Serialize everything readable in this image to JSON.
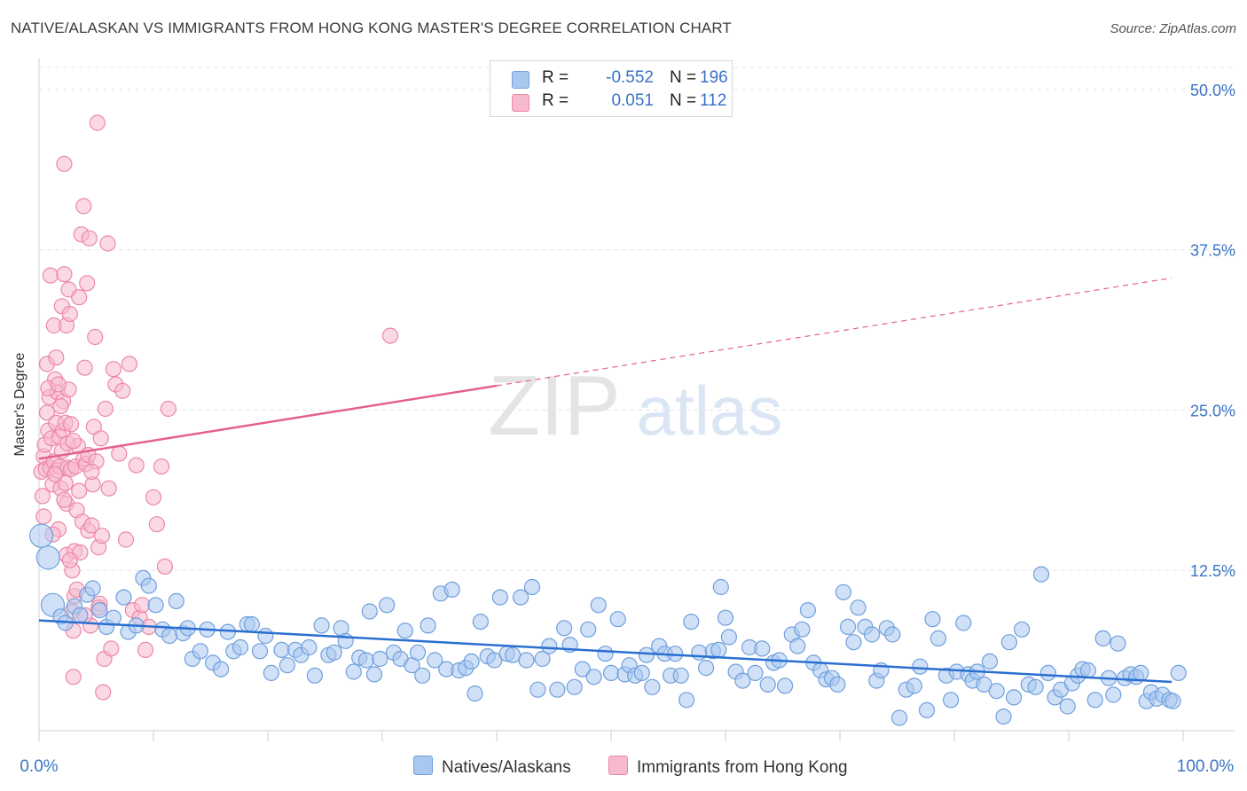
{
  "title": "NATIVE/ALASKAN VS IMMIGRANTS FROM HONG KONG MASTER'S DEGREE CORRELATION CHART",
  "source": "Source: ZipAtlas.com",
  "watermark": {
    "zip": "ZIP",
    "atlas": "atlas"
  },
  "colors": {
    "blue_fill": "#a9c8f0",
    "blue_stroke": "#6f9fdd",
    "blue_line": "#2a6fd1",
    "pink_fill": "#f7b9cd",
    "pink_stroke": "#ec87a8",
    "pink_line": "#e6608c",
    "axis_text": "#3a73c5",
    "grid": "#e4e4e4"
  },
  "legend": {
    "rows": [
      {
        "r_label": "R =",
        "r_value": "-0.552",
        "n_label": "N =",
        "n_value": "196",
        "color": "#a9c8f0",
        "border": "#6f9fdd"
      },
      {
        "r_label": "R =",
        "r_value": "0.051",
        "n_label": "N =",
        "n_value": "112",
        "color": "#f7b9cd",
        "border": "#ec87a8"
      }
    ]
  },
  "bottom_legend": [
    "Natives/Alaskans",
    "Immigrants from Hong Kong"
  ],
  "chart_data": {
    "type": "scatter",
    "title": "NATIVE/ALASKAN VS IMMIGRANTS FROM HONG KONG MASTER'S DEGREE CORRELATION CHART",
    "xlabel": "",
    "ylabel": "Master's Degree",
    "xlim": [
      0,
      100
    ],
    "ylim": [
      0,
      52
    ],
    "x_tick_labels": [
      "0.0%",
      "100.0%"
    ],
    "y_ticks": [
      12.5,
      25.0,
      37.5,
      50.0
    ],
    "y_tick_labels": [
      "12.5%",
      "25.0%",
      "37.5%",
      "50.0%"
    ],
    "grid": true,
    "legend_position": "top-center",
    "series": [
      {
        "name": "Natives/Alaskans",
        "R": -0.552,
        "N": 196,
        "trend": {
          "x0": 0,
          "y0": 8.6,
          "x1": 99,
          "y1": 3.8
        },
        "points": [
          [
            0.2,
            15.2
          ],
          [
            0.8,
            13.5
          ],
          [
            1.2,
            9.8
          ],
          [
            1.9,
            8.9
          ],
          [
            2.3,
            8.4
          ],
          [
            3.1,
            9.7
          ],
          [
            3.6,
            9.0
          ],
          [
            4.2,
            10.6
          ],
          [
            4.7,
            11.1
          ],
          [
            5.3,
            9.4
          ],
          [
            5.9,
            8.1
          ],
          [
            6.5,
            8.8
          ],
          [
            7.4,
            10.4
          ],
          [
            7.8,
            7.7
          ],
          [
            8.5,
            8.2
          ],
          [
            9.1,
            11.9
          ],
          [
            9.6,
            11.3
          ],
          [
            10.2,
            9.8
          ],
          [
            10.8,
            7.9
          ],
          [
            11.4,
            7.4
          ],
          [
            12.0,
            10.1
          ],
          [
            12.6,
            7.6
          ],
          [
            13.0,
            8.0
          ],
          [
            13.4,
            5.6
          ],
          [
            14.1,
            6.2
          ],
          [
            14.7,
            7.9
          ],
          [
            15.2,
            5.3
          ],
          [
            15.9,
            4.8
          ],
          [
            16.5,
            7.7
          ],
          [
            17.0,
            6.2
          ],
          [
            17.6,
            6.5
          ],
          [
            18.2,
            8.3
          ],
          [
            18.6,
            8.3
          ],
          [
            19.3,
            6.2
          ],
          [
            19.8,
            7.4
          ],
          [
            20.3,
            4.5
          ],
          [
            21.2,
            6.3
          ],
          [
            21.7,
            5.1
          ],
          [
            22.4,
            6.3
          ],
          [
            22.9,
            5.9
          ],
          [
            23.6,
            6.5
          ],
          [
            24.1,
            4.3
          ],
          [
            24.7,
            8.2
          ],
          [
            25.3,
            5.9
          ],
          [
            25.8,
            6.1
          ],
          [
            26.4,
            8.0
          ],
          [
            26.8,
            7.0
          ],
          [
            27.5,
            4.6
          ],
          [
            28.0,
            5.7
          ],
          [
            28.6,
            5.5
          ],
          [
            28.9,
            9.3
          ],
          [
            29.3,
            4.4
          ],
          [
            29.8,
            5.6
          ],
          [
            30.4,
            9.8
          ],
          [
            31.0,
            6.1
          ],
          [
            31.6,
            5.6
          ],
          [
            32.0,
            7.8
          ],
          [
            32.6,
            5.1
          ],
          [
            33.1,
            6.1
          ],
          [
            33.5,
            4.3
          ],
          [
            34.0,
            8.2
          ],
          [
            34.6,
            5.5
          ],
          [
            35.1,
            10.7
          ],
          [
            35.6,
            4.8
          ],
          [
            36.1,
            11.0
          ],
          [
            36.7,
            4.7
          ],
          [
            37.3,
            4.9
          ],
          [
            37.8,
            5.4
          ],
          [
            38.1,
            2.9
          ],
          [
            38.6,
            8.5
          ],
          [
            39.2,
            5.8
          ],
          [
            39.8,
            5.5
          ],
          [
            40.3,
            10.4
          ],
          [
            40.9,
            6.0
          ],
          [
            41.4,
            5.9
          ],
          [
            42.1,
            10.4
          ],
          [
            42.6,
            5.5
          ],
          [
            43.1,
            11.2
          ],
          [
            43.6,
            3.2
          ],
          [
            44.0,
            5.6
          ],
          [
            44.6,
            6.6
          ],
          [
            45.3,
            3.2
          ],
          [
            45.9,
            8.0
          ],
          [
            46.4,
            6.7
          ],
          [
            46.8,
            3.4
          ],
          [
            47.5,
            4.8
          ],
          [
            48.0,
            7.9
          ],
          [
            48.5,
            4.2
          ],
          [
            48.9,
            9.8
          ],
          [
            49.5,
            6.0
          ],
          [
            50.0,
            4.5
          ],
          [
            50.6,
            8.7
          ],
          [
            51.2,
            4.4
          ],
          [
            51.6,
            5.1
          ],
          [
            52.1,
            4.3
          ],
          [
            52.7,
            4.5
          ],
          [
            53.1,
            5.9
          ],
          [
            53.6,
            3.4
          ],
          [
            54.2,
            6.6
          ],
          [
            54.7,
            6.0
          ],
          [
            55.2,
            4.3
          ],
          [
            55.6,
            6.0
          ],
          [
            56.1,
            4.3
          ],
          [
            56.6,
            2.4
          ],
          [
            57.0,
            8.5
          ],
          [
            57.7,
            6.1
          ],
          [
            58.3,
            4.9
          ],
          [
            58.9,
            6.2
          ],
          [
            59.4,
            6.3
          ],
          [
            59.6,
            11.2
          ],
          [
            60.0,
            8.8
          ],
          [
            60.3,
            7.3
          ],
          [
            60.9,
            4.6
          ],
          [
            61.5,
            3.9
          ],
          [
            62.1,
            6.5
          ],
          [
            62.6,
            4.5
          ],
          [
            63.2,
            6.4
          ],
          [
            63.7,
            3.6
          ],
          [
            64.2,
            5.3
          ],
          [
            64.7,
            5.5
          ],
          [
            65.2,
            3.5
          ],
          [
            65.8,
            7.5
          ],
          [
            66.3,
            6.6
          ],
          [
            66.7,
            7.9
          ],
          [
            67.2,
            9.4
          ],
          [
            67.7,
            5.3
          ],
          [
            68.3,
            4.7
          ],
          [
            68.8,
            4.0
          ],
          [
            69.3,
            4.1
          ],
          [
            69.8,
            3.6
          ],
          [
            70.3,
            10.8
          ],
          [
            70.7,
            8.1
          ],
          [
            71.2,
            6.9
          ],
          [
            71.6,
            9.6
          ],
          [
            72.2,
            8.1
          ],
          [
            72.8,
            7.5
          ],
          [
            73.2,
            3.9
          ],
          [
            73.6,
            4.7
          ],
          [
            74.1,
            8.0
          ],
          [
            74.6,
            7.5
          ],
          [
            75.2,
            1.0
          ],
          [
            75.8,
            3.2
          ],
          [
            76.5,
            3.5
          ],
          [
            77.0,
            5.0
          ],
          [
            77.6,
            1.6
          ],
          [
            78.1,
            8.7
          ],
          [
            78.6,
            7.2
          ],
          [
            79.3,
            4.3
          ],
          [
            79.7,
            2.4
          ],
          [
            80.2,
            4.6
          ],
          [
            80.8,
            8.4
          ],
          [
            81.2,
            4.4
          ],
          [
            81.6,
            3.9
          ],
          [
            82.0,
            4.6
          ],
          [
            82.6,
            3.6
          ],
          [
            83.1,
            5.4
          ],
          [
            83.7,
            3.1
          ],
          [
            84.3,
            1.1
          ],
          [
            84.8,
            6.9
          ],
          [
            85.2,
            2.6
          ],
          [
            85.9,
            7.9
          ],
          [
            86.5,
            3.6
          ],
          [
            87.1,
            3.4
          ],
          [
            87.6,
            12.2
          ],
          [
            88.2,
            4.5
          ],
          [
            88.8,
            2.6
          ],
          [
            89.3,
            3.2
          ],
          [
            89.9,
            1.9
          ],
          [
            90.3,
            3.7
          ],
          [
            90.8,
            4.3
          ],
          [
            91.2,
            4.8
          ],
          [
            91.7,
            4.7
          ],
          [
            92.3,
            2.4
          ],
          [
            93.0,
            7.2
          ],
          [
            93.5,
            4.1
          ],
          [
            93.9,
            2.8
          ],
          [
            94.3,
            6.8
          ],
          [
            94.9,
            4.1
          ],
          [
            95.4,
            4.4
          ],
          [
            95.9,
            4.2
          ],
          [
            96.3,
            4.5
          ],
          [
            96.8,
            2.3
          ],
          [
            97.2,
            3.0
          ],
          [
            97.7,
            2.5
          ],
          [
            98.2,
            2.8
          ],
          [
            98.8,
            2.4
          ],
          [
            99.1,
            2.3
          ],
          [
            99.6,
            4.5
          ]
        ]
      },
      {
        "name": "Immigrants from Hong Kong",
        "R": 0.051,
        "N": 112,
        "trend": {
          "x0": 0,
          "y0": 21.2,
          "x1": 40,
          "y1": 26.9,
          "dash_x1": 99,
          "dash_y1": 35.3
        },
        "points": [
          [
            0.2,
            20.2
          ],
          [
            0.3,
            18.3
          ],
          [
            0.4,
            16.7
          ],
          [
            0.4,
            21.4
          ],
          [
            0.5,
            22.3
          ],
          [
            0.6,
            20.4
          ],
          [
            0.7,
            24.8
          ],
          [
            0.7,
            28.6
          ],
          [
            0.8,
            23.4
          ],
          [
            0.9,
            26.0
          ],
          [
            1.0,
            20.5
          ],
          [
            1.0,
            35.5
          ],
          [
            1.1,
            22.8
          ],
          [
            1.2,
            19.2
          ],
          [
            1.3,
            31.6
          ],
          [
            1.3,
            21.0
          ],
          [
            1.4,
            27.4
          ],
          [
            1.5,
            24.0
          ],
          [
            1.5,
            29.1
          ],
          [
            1.6,
            26.4
          ],
          [
            1.6,
            20.3
          ],
          [
            1.7,
            15.7
          ],
          [
            1.8,
            22.9
          ],
          [
            1.8,
            20.6
          ],
          [
            1.9,
            18.9
          ],
          [
            2.0,
            33.1
          ],
          [
            2.0,
            21.8
          ],
          [
            2.1,
            23.4
          ],
          [
            2.1,
            25.7
          ],
          [
            2.2,
            35.6
          ],
          [
            2.2,
            44.2
          ],
          [
            2.3,
            24.0
          ],
          [
            2.3,
            19.3
          ],
          [
            2.4,
            13.7
          ],
          [
            2.4,
            17.7
          ],
          [
            2.4,
            31.6
          ],
          [
            2.5,
            20.5
          ],
          [
            2.6,
            34.4
          ],
          [
            2.6,
            26.6
          ],
          [
            2.7,
            32.5
          ],
          [
            2.8,
            20.4
          ],
          [
            2.8,
            23.9
          ],
          [
            2.9,
            12.5
          ],
          [
            2.9,
            9.3
          ],
          [
            3.0,
            7.8
          ],
          [
            3.0,
            4.2
          ],
          [
            3.1,
            10.5
          ],
          [
            3.1,
            14.0
          ],
          [
            3.2,
            20.6
          ],
          [
            3.3,
            17.2
          ],
          [
            3.4,
            22.2
          ],
          [
            3.5,
            18.7
          ],
          [
            3.5,
            33.8
          ],
          [
            3.6,
            13.9
          ],
          [
            3.7,
            38.7
          ],
          [
            3.8,
            16.3
          ],
          [
            3.9,
            21.2
          ],
          [
            3.9,
            40.9
          ],
          [
            4.0,
            28.3
          ],
          [
            4.1,
            20.8
          ],
          [
            4.2,
            34.9
          ],
          [
            4.3,
            15.6
          ],
          [
            4.3,
            21.5
          ],
          [
            4.4,
            38.4
          ],
          [
            4.5,
            8.2
          ],
          [
            4.6,
            16.0
          ],
          [
            4.7,
            19.2
          ],
          [
            4.8,
            23.7
          ],
          [
            4.9,
            30.7
          ],
          [
            5.0,
            21.0
          ],
          [
            5.1,
            47.4
          ],
          [
            5.2,
            14.3
          ],
          [
            5.3,
            9.9
          ],
          [
            5.4,
            22.8
          ],
          [
            5.5,
            15.2
          ],
          [
            5.6,
            3.0
          ],
          [
            5.7,
            5.6
          ],
          [
            5.8,
            25.1
          ],
          [
            6.0,
            38.0
          ],
          [
            6.1,
            18.9
          ],
          [
            6.3,
            6.4
          ],
          [
            6.5,
            28.2
          ],
          [
            6.7,
            27.0
          ],
          [
            7.0,
            21.6
          ],
          [
            7.3,
            26.5
          ],
          [
            7.6,
            14.9
          ],
          [
            7.9,
            28.6
          ],
          [
            8.2,
            9.4
          ],
          [
            8.5,
            20.7
          ],
          [
            8.8,
            8.8
          ],
          [
            9.0,
            9.8
          ],
          [
            9.3,
            6.3
          ],
          [
            9.6,
            8.1
          ],
          [
            10.0,
            18.2
          ],
          [
            10.3,
            16.1
          ],
          [
            10.7,
            20.6
          ],
          [
            11.0,
            12.8
          ],
          [
            11.3,
            25.1
          ],
          [
            0.8,
            26.7
          ],
          [
            1.2,
            15.3
          ],
          [
            1.7,
            27.0
          ],
          [
            2.5,
            22.4
          ],
          [
            3.3,
            11.0
          ],
          [
            4.0,
            9.0
          ],
          [
            4.6,
            20.2
          ],
          [
            5.2,
            9.6
          ],
          [
            1.4,
            20.0
          ],
          [
            2.2,
            18.0
          ],
          [
            3.0,
            22.6
          ],
          [
            1.9,
            25.3
          ],
          [
            2.7,
            13.3
          ],
          [
            30.7,
            30.8
          ]
        ]
      }
    ]
  }
}
